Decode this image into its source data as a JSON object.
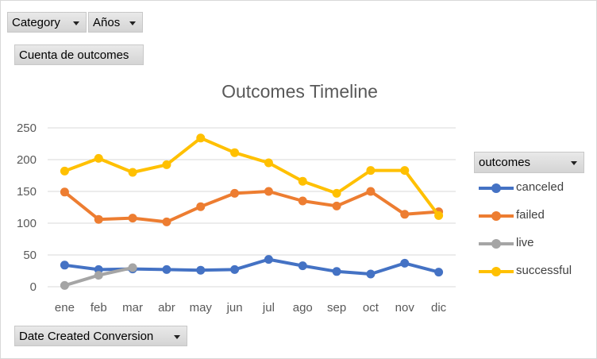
{
  "filters": {
    "category": "Category",
    "years": "Años",
    "measure": "Cuenta de outcomes",
    "axis_field": "Date Created Conversion",
    "legend_field": "outcomes"
  },
  "colors": {
    "canceled": "#4472C4",
    "failed": "#ED7D31",
    "live": "#A5A5A5",
    "successful": "#FFC000"
  },
  "chart_data": {
    "type": "line",
    "title": "Outcomes Timeline",
    "xlabel": "",
    "ylabel": "",
    "ylim": [
      0,
      250
    ],
    "yticks": [
      0,
      50,
      100,
      150,
      200,
      250
    ],
    "grid": true,
    "legend": "right",
    "categories": [
      "ene",
      "feb",
      "mar",
      "abr",
      "may",
      "jun",
      "jul",
      "ago",
      "sep",
      "oct",
      "nov",
      "dic"
    ],
    "series": [
      {
        "name": "canceled",
        "values": [
          34,
          27,
          28,
          27,
          26,
          27,
          43,
          33,
          24,
          20,
          37,
          23
        ]
      },
      {
        "name": "failed",
        "values": [
          149,
          106,
          108,
          102,
          126,
          147,
          150,
          135,
          127,
          150,
          114,
          118
        ]
      },
      {
        "name": "live",
        "values": [
          2,
          18,
          30,
          null,
          null,
          null,
          null,
          null,
          null,
          null,
          null,
          null
        ]
      },
      {
        "name": "successful",
        "values": [
          182,
          202,
          180,
          192,
          234,
          211,
          195,
          166,
          147,
          183,
          183,
          112
        ]
      }
    ]
  }
}
